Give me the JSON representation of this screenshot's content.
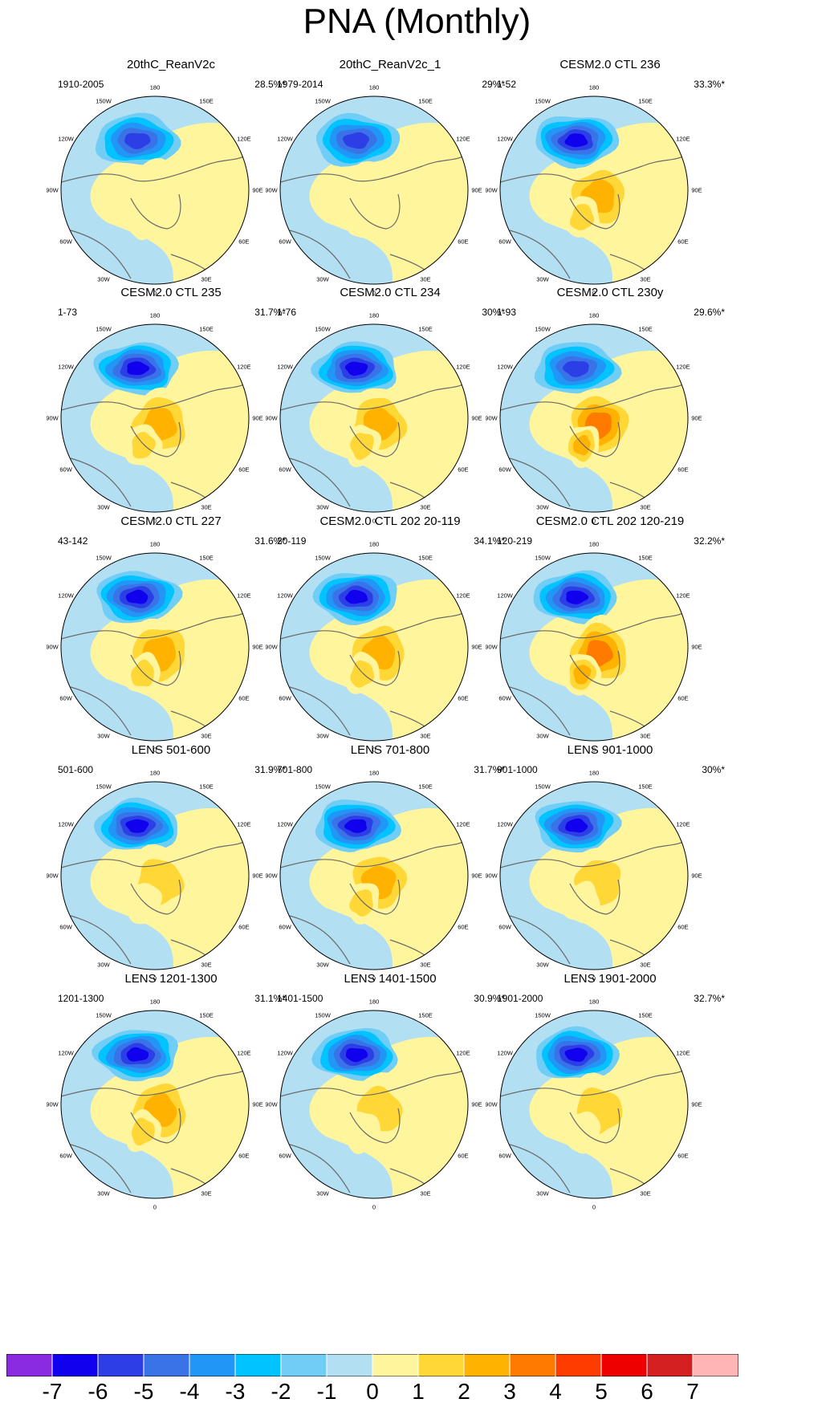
{
  "figure": {
    "title": "PNA (Monthly)"
  },
  "map_type": "north-polar-stereographic",
  "lon_labels": [
    "180",
    "150E",
    "120E",
    "90E",
    "60E",
    "30E",
    "0",
    "30W",
    "60W",
    "90W",
    "120W",
    "150W"
  ],
  "panels": [
    {
      "title": "20thC_ReanV2c",
      "range": "1910-2005",
      "variance": "28.5%*",
      "low_level": 5,
      "high_level": 1
    },
    {
      "title": "20thC_ReanV2c_1",
      "range": "1979-2014",
      "variance": "29%*",
      "low_level": 5,
      "high_level": 1
    },
    {
      "title": "CESM2.0 CTL 236",
      "range": "1-52",
      "variance": "33.3%*",
      "low_level": 6,
      "high_level": 3
    },
    {
      "title": "CESM2.0 CTL 235",
      "range": "1-73",
      "variance": "31.7%*",
      "low_level": 6,
      "high_level": 3
    },
    {
      "title": "CESM2.0 CTL 234",
      "range": "1-76",
      "variance": "30%*",
      "low_level": 6,
      "high_level": 3
    },
    {
      "title": "CESM2.0 CTL 230y",
      "range": "1-93",
      "variance": "29.6%*",
      "low_level": 5,
      "high_level": 4
    },
    {
      "title": "CESM2.0 CTL 227",
      "range": "43-142",
      "variance": "31.6%*",
      "low_level": 6,
      "high_level": 3
    },
    {
      "title": "CESM2.0 CTL 202 20-119",
      "range": "20-119",
      "variance": "34.1%*",
      "low_level": 6,
      "high_level": 3
    },
    {
      "title": "CESM2.0 CTL 202 120-219",
      "range": "120-219",
      "variance": "32.2%*",
      "low_level": 6,
      "high_level": 4
    },
    {
      "title": "LENS 501-600",
      "range": "501-600",
      "variance": "31.9%*",
      "low_level": 6,
      "high_level": 2
    },
    {
      "title": "LENS 701-800",
      "range": "701-800",
      "variance": "31.7%*",
      "low_level": 6,
      "high_level": 3
    },
    {
      "title": "LENS 901-1000",
      "range": "901-1000",
      "variance": "30%*",
      "low_level": 6,
      "high_level": 2
    },
    {
      "title": "LENS 1201-1300",
      "range": "1201-1300",
      "variance": "31.1%*",
      "low_level": 6,
      "high_level": 3
    },
    {
      "title": "LENS 1401-1500",
      "range": "1401-1500",
      "variance": "30.9%*",
      "low_level": 6,
      "high_level": 2
    },
    {
      "title": "LENS 1901-2000",
      "range": "1901-2000",
      "variance": "32.7%*",
      "low_level": 6,
      "high_level": 2
    }
  ],
  "colorbar": {
    "labels": [
      "-7",
      "-6",
      "-5",
      "-4",
      "-3",
      "-2",
      "-1",
      "0",
      "1",
      "2",
      "3",
      "4",
      "5",
      "6",
      "7"
    ],
    "colors": [
      "#8a2be2",
      "#1100ee",
      "#2c3fe6",
      "#3a73e8",
      "#2196f6",
      "#00c3ff",
      "#6fcdf6",
      "#b3dff3",
      "#fff59d",
      "#ffd737",
      "#ffb200",
      "#ff7b00",
      "#ff3c00",
      "#ee0000",
      "#d42020",
      "#ffb5b5"
    ]
  },
  "colors": {
    "ocean": "#b3dff3",
    "land_positive": "#fff59d",
    "coast": "#6a6a6a"
  }
}
